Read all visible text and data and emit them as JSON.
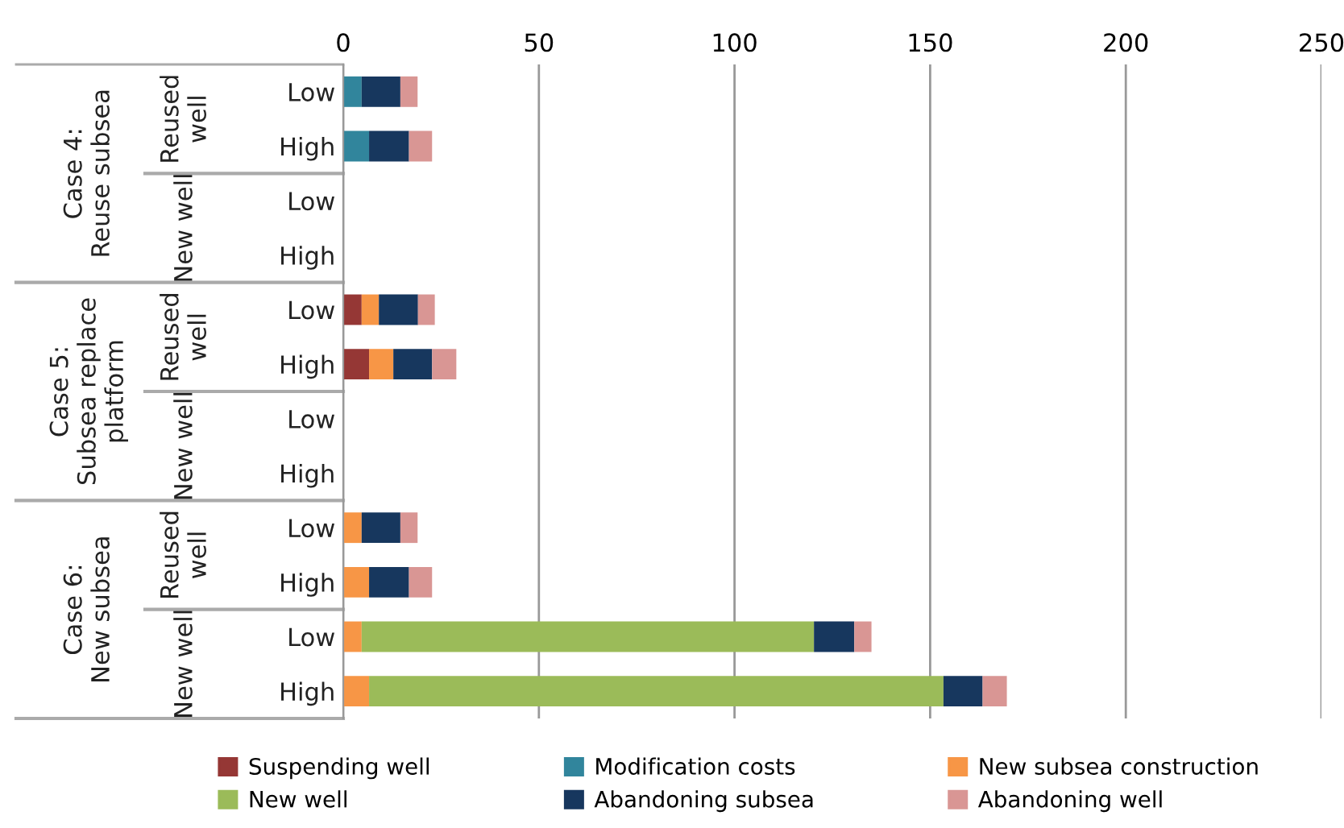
{
  "chart_data": {
    "type": "bar",
    "orientation": "horizontal",
    "stacked": true,
    "categories": [
      "Low",
      "High",
      "Low",
      "High",
      "Low",
      "High",
      "Low",
      "High",
      "Low",
      "High",
      "Low",
      "High"
    ],
    "series": [
      {
        "name": "Suspending well",
        "color": "#953735",
        "values": [
          null,
          null,
          null,
          null,
          4.7,
          6.6,
          null,
          null,
          null,
          null,
          null,
          null
        ]
      },
      {
        "name": "Modification costs",
        "color": "#31859c",
        "values": [
          4.7,
          6.6,
          null,
          null,
          null,
          null,
          null,
          null,
          null,
          null,
          null,
          null
        ]
      },
      {
        "name": "New subsea construction",
        "color": "#f79646",
        "values": [
          null,
          null,
          null,
          null,
          4.4,
          6.2,
          null,
          null,
          4.7,
          6.6,
          4.7,
          6.6
        ]
      },
      {
        "name": "New well",
        "color": "#9bbb59",
        "values": [
          null,
          null,
          null,
          null,
          null,
          null,
          null,
          null,
          null,
          null,
          115.6,
          146.8
        ]
      },
      {
        "name": "Abandoning subsea",
        "color": "#17375e",
        "values": [
          9.9,
          10.2,
          null,
          null,
          10,
          9.9,
          null,
          null,
          9.9,
          10.2,
          10.3,
          10
        ]
      },
      {
        "name": "Abandoning well",
        "color": "#d99694",
        "values": [
          4.4,
          5.9,
          null,
          null,
          4.3,
          6.2,
          null,
          null,
          4.4,
          5.9,
          4.4,
          6.2
        ]
      }
    ],
    "xlim": [
      0,
      250
    ],
    "xticks": [
      0,
      50,
      100,
      150,
      200,
      250
    ],
    "grid": "x",
    "legend": "bottom",
    "annotations": [
      "Case 4:\nReuse subsea",
      "Reused\nwell",
      "New well",
      "Case 5:\nSubsea replace\nplatform",
      "Reused\nwell",
      "New well",
      "Case 6:\nNew subsea",
      "Reused\nwell",
      "New well"
    ]
  }
}
